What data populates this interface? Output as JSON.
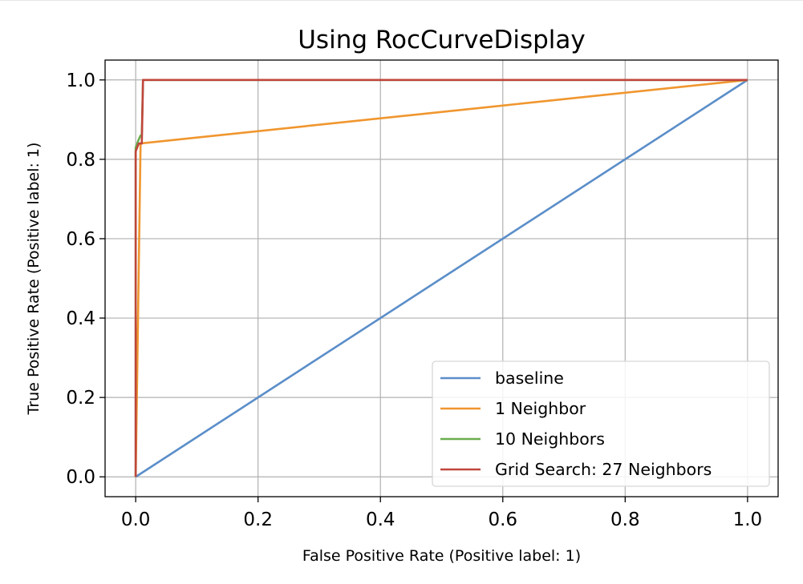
{
  "chart_data": {
    "type": "line",
    "title": "Using RocCurveDisplay",
    "xlabel": "False Positive Rate (Positive label: 1)",
    "ylabel": "True Positive Rate (Positive label: 1)",
    "xlim": [
      -0.05,
      1.05
    ],
    "ylim": [
      -0.05,
      1.05
    ],
    "xticks": [
      0.0,
      0.2,
      0.4,
      0.6,
      0.8,
      1.0
    ],
    "yticks": [
      0.0,
      0.2,
      0.4,
      0.6,
      0.8,
      1.0
    ],
    "xtick_labels": [
      "0.0",
      "0.2",
      "0.4",
      "0.6",
      "0.8",
      "1.0"
    ],
    "ytick_labels": [
      "0.0",
      "0.2",
      "0.4",
      "0.6",
      "0.8",
      "1.0"
    ],
    "grid": true,
    "legend_position": "lower-right",
    "series": [
      {
        "name": "baseline",
        "color": "#5b8ec9",
        "x": [
          0,
          1
        ],
        "y": [
          0,
          1
        ]
      },
      {
        "name": "1 Neighbor",
        "color": "#f0962e",
        "x": [
          0,
          0.008,
          1
        ],
        "y": [
          0,
          0.84,
          1
        ]
      },
      {
        "name": "10 Neighbors",
        "color": "#6aad4e",
        "x": [
          0,
          0.0,
          0.005,
          0.008,
          0.01,
          0.012,
          1
        ],
        "y": [
          0,
          0.83,
          0.85,
          0.86,
          0.86,
          1.0,
          1.0
        ]
      },
      {
        "name": "Grid Search: 27 Neighbors",
        "color": "#c0463c",
        "x": [
          0,
          0.0,
          0.005,
          0.01,
          0.012,
          1
        ],
        "y": [
          0,
          0.82,
          0.84,
          0.84,
          1.0,
          1.0
        ]
      }
    ]
  }
}
